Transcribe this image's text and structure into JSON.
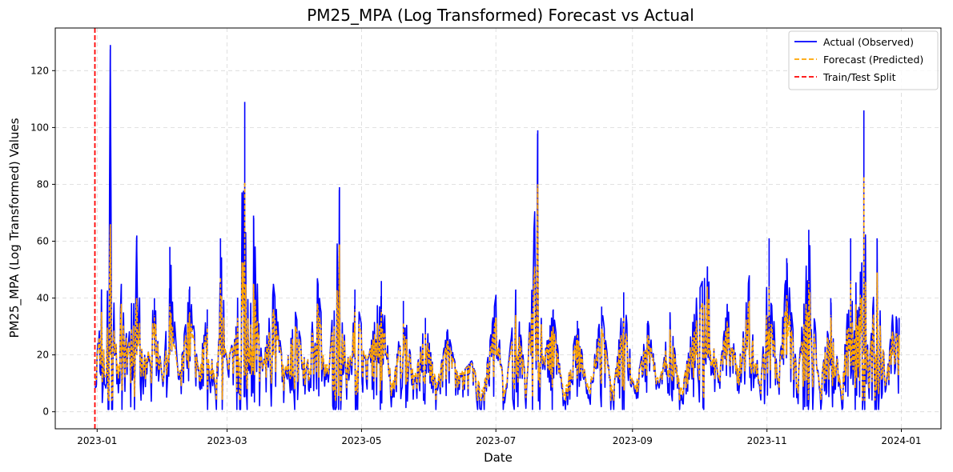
{
  "chart_data": {
    "type": "line",
    "title": "PM25_MPA (Log Transformed) Forecast vs Actual",
    "xlabel": "Date",
    "ylabel": "PM25_MPA (Log Transformed) Values",
    "xlim": [
      "2022-12-13",
      "2024-01-19"
    ],
    "ylim": [
      -6,
      135
    ],
    "x_ticks": [
      "2023-01",
      "2023-03",
      "2023-05",
      "2023-07",
      "2023-09",
      "2023-11",
      "2024-01"
    ],
    "y_ticks": [
      0,
      20,
      40,
      60,
      80,
      100,
      120
    ],
    "grid": true,
    "legend_position": "top-right",
    "split_date": "2022-12-31",
    "series": [
      {
        "name": "Actual (Observed)",
        "color": "#0000ff",
        "style": "solid",
        "points": [
          [
            "2022-12-31",
            9
          ],
          [
            "2023-01-03",
            43
          ],
          [
            "2023-01-05",
            8
          ],
          [
            "2023-01-07",
            129
          ],
          [
            "2023-01-09",
            18
          ],
          [
            "2023-01-12",
            45
          ],
          [
            "2023-01-15",
            22
          ],
          [
            "2023-01-19",
            62
          ],
          [
            "2023-01-23",
            17
          ],
          [
            "2023-01-27",
            40
          ],
          [
            "2023-01-31",
            8
          ],
          [
            "2023-02-03",
            58
          ],
          [
            "2023-02-07",
            10
          ],
          [
            "2023-02-12",
            44
          ],
          [
            "2023-02-16",
            14
          ],
          [
            "2023-02-20",
            36
          ],
          [
            "2023-02-24",
            4
          ],
          [
            "2023-02-26",
            61
          ],
          [
            "2023-03-01",
            16
          ],
          [
            "2023-03-05",
            30
          ],
          [
            "2023-03-09",
            109
          ],
          [
            "2023-03-11",
            20
          ],
          [
            "2023-03-13",
            69
          ],
          [
            "2023-03-17",
            14
          ],
          [
            "2023-03-22",
            45
          ],
          [
            "2023-03-27",
            12
          ],
          [
            "2023-04-01",
            35
          ],
          [
            "2023-04-06",
            15
          ],
          [
            "2023-04-11",
            47
          ],
          [
            "2023-04-16",
            10
          ],
          [
            "2023-04-21",
            79
          ],
          [
            "2023-04-24",
            12
          ],
          [
            "2023-04-28",
            43
          ],
          [
            "2023-05-04",
            18
          ],
          [
            "2023-05-10",
            46
          ],
          [
            "2023-05-15",
            6
          ],
          [
            "2023-05-20",
            39
          ],
          [
            "2023-05-25",
            10
          ],
          [
            "2023-05-30",
            33
          ],
          [
            "2023-06-04",
            8
          ],
          [
            "2023-06-09",
            29
          ],
          [
            "2023-06-14",
            12
          ],
          [
            "2023-06-20",
            18
          ],
          [
            "2023-06-25",
            5
          ],
          [
            "2023-07-01",
            41
          ],
          [
            "2023-07-05",
            3
          ],
          [
            "2023-07-10",
            43
          ],
          [
            "2023-07-15",
            8
          ],
          [
            "2023-07-20",
            99
          ],
          [
            "2023-07-22",
            16
          ],
          [
            "2023-07-27",
            36
          ],
          [
            "2023-08-01",
            3
          ],
          [
            "2023-08-07",
            32
          ],
          [
            "2023-08-12",
            5
          ],
          [
            "2023-08-18",
            37
          ],
          [
            "2023-08-23",
            4
          ],
          [
            "2023-08-28",
            42
          ],
          [
            "2023-09-02",
            6
          ],
          [
            "2023-09-08",
            32
          ],
          [
            "2023-09-13",
            8
          ],
          [
            "2023-09-18",
            35
          ],
          [
            "2023-09-23",
            4
          ],
          [
            "2023-09-30",
            40
          ],
          [
            "2023-10-05",
            51
          ],
          [
            "2023-10-10",
            10
          ],
          [
            "2023-10-14",
            38
          ],
          [
            "2023-10-19",
            14
          ],
          [
            "2023-10-24",
            48
          ],
          [
            "2023-10-29",
            6
          ],
          [
            "2023-11-02",
            61
          ],
          [
            "2023-11-06",
            8
          ],
          [
            "2023-11-10",
            54
          ],
          [
            "2023-11-15",
            10
          ],
          [
            "2023-11-20",
            64
          ],
          [
            "2023-11-25",
            6
          ],
          [
            "2023-11-30",
            40
          ],
          [
            "2023-12-05",
            3
          ],
          [
            "2023-12-09",
            61
          ],
          [
            "2023-12-13",
            35
          ],
          [
            "2023-12-15",
            106
          ],
          [
            "2023-12-17",
            10
          ],
          [
            "2023-12-21",
            61
          ],
          [
            "2023-12-25",
            8
          ],
          [
            "2023-12-28",
            34
          ],
          [
            "2023-12-31",
            33
          ]
        ]
      },
      {
        "name": "Forecast (Predicted)",
        "color": "#ffa500",
        "style": "dashed",
        "points": [
          [
            "2022-12-31",
            12
          ],
          [
            "2023-01-03",
            35
          ],
          [
            "2023-01-05",
            12
          ],
          [
            "2023-01-07",
            66
          ],
          [
            "2023-01-09",
            20
          ],
          [
            "2023-01-12",
            38
          ],
          [
            "2023-01-15",
            22
          ],
          [
            "2023-01-19",
            40
          ],
          [
            "2023-01-23",
            18
          ],
          [
            "2023-01-27",
            34
          ],
          [
            "2023-01-31",
            10
          ],
          [
            "2023-02-03",
            38
          ],
          [
            "2023-02-07",
            12
          ],
          [
            "2023-02-12",
            35
          ],
          [
            "2023-02-16",
            15
          ],
          [
            "2023-02-20",
            30
          ],
          [
            "2023-02-24",
            8
          ],
          [
            "2023-02-26",
            47
          ],
          [
            "2023-03-01",
            18
          ],
          [
            "2023-03-05",
            27
          ],
          [
            "2023-03-09",
            81
          ],
          [
            "2023-03-11",
            22
          ],
          [
            "2023-03-13",
            45
          ],
          [
            "2023-03-17",
            15
          ],
          [
            "2023-03-22",
            36
          ],
          [
            "2023-03-27",
            14
          ],
          [
            "2023-04-01",
            30
          ],
          [
            "2023-04-06",
            16
          ],
          [
            "2023-04-11",
            38
          ],
          [
            "2023-04-16",
            13
          ],
          [
            "2023-04-21",
            59
          ],
          [
            "2023-04-24",
            14
          ],
          [
            "2023-04-28",
            36
          ],
          [
            "2023-05-04",
            19
          ],
          [
            "2023-05-10",
            36
          ],
          [
            "2023-05-15",
            9
          ],
          [
            "2023-05-20",
            31
          ],
          [
            "2023-05-25",
            12
          ],
          [
            "2023-05-30",
            28
          ],
          [
            "2023-06-04",
            10
          ],
          [
            "2023-06-09",
            25
          ],
          [
            "2023-06-14",
            13
          ],
          [
            "2023-06-20",
            17
          ],
          [
            "2023-06-25",
            7
          ],
          [
            "2023-07-01",
            33
          ],
          [
            "2023-07-05",
            6
          ],
          [
            "2023-07-10",
            34
          ],
          [
            "2023-07-15",
            10
          ],
          [
            "2023-07-20",
            80
          ],
          [
            "2023-07-22",
            18
          ],
          [
            "2023-07-27",
            30
          ],
          [
            "2023-08-01",
            6
          ],
          [
            "2023-08-07",
            27
          ],
          [
            "2023-08-12",
            8
          ],
          [
            "2023-08-18",
            30
          ],
          [
            "2023-08-23",
            7
          ],
          [
            "2023-08-28",
            33
          ],
          [
            "2023-09-02",
            8
          ],
          [
            "2023-09-08",
            27
          ],
          [
            "2023-09-13",
            10
          ],
          [
            "2023-09-18",
            29
          ],
          [
            "2023-09-23",
            7
          ],
          [
            "2023-09-30",
            32
          ],
          [
            "2023-10-05",
            44
          ],
          [
            "2023-10-10",
            12
          ],
          [
            "2023-10-14",
            32
          ],
          [
            "2023-10-19",
            15
          ],
          [
            "2023-10-24",
            39
          ],
          [
            "2023-10-29",
            8
          ],
          [
            "2023-11-02",
            44
          ],
          [
            "2023-11-06",
            10
          ],
          [
            "2023-11-10",
            41
          ],
          [
            "2023-11-15",
            12
          ],
          [
            "2023-11-20",
            46
          ],
          [
            "2023-11-25",
            8
          ],
          [
            "2023-11-30",
            34
          ],
          [
            "2023-12-05",
            6
          ],
          [
            "2023-12-09",
            46
          ],
          [
            "2023-12-13",
            32
          ],
          [
            "2023-12-15",
            83
          ],
          [
            "2023-12-17",
            12
          ],
          [
            "2023-12-21",
            49
          ],
          [
            "2023-12-25",
            10
          ],
          [
            "2023-12-28",
            28
          ],
          [
            "2023-12-31",
            27
          ]
        ]
      },
      {
        "name": "Train/Test Split",
        "color": "#ff0000",
        "style": "dashed"
      }
    ]
  }
}
